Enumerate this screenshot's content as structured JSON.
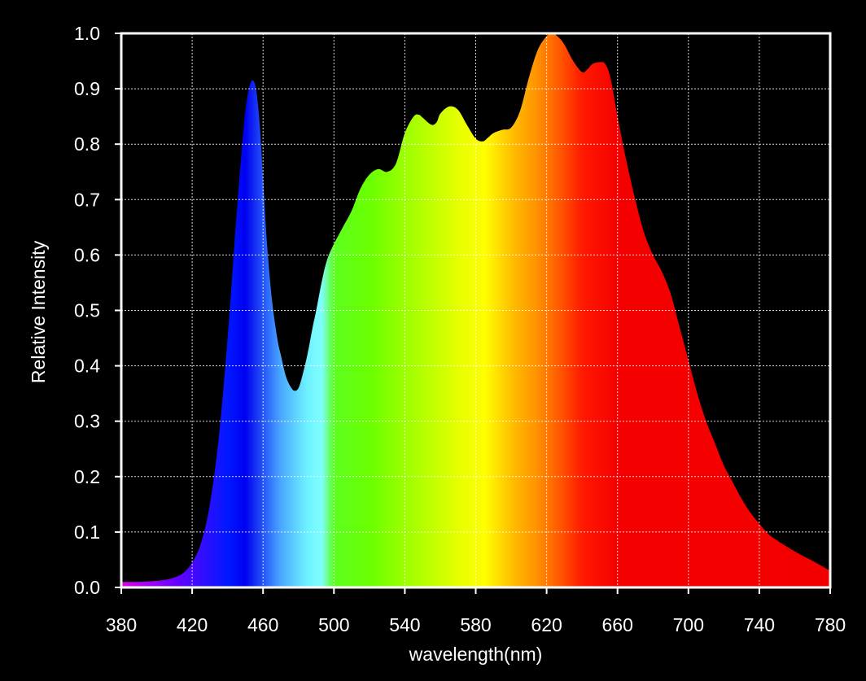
{
  "chart_data": {
    "type": "area",
    "title": "",
    "xlabel": "wavelength(nm)",
    "ylabel": "Relative Intensity",
    "xlim": [
      380,
      780
    ],
    "ylim": [
      0,
      1.0
    ],
    "grid": true,
    "background": "#000000",
    "x_ticks": [
      "380",
      "420",
      "460",
      "500",
      "540",
      "580",
      "620",
      "660",
      "700",
      "740",
      "780"
    ],
    "y_ticks": [
      "0.0",
      "0.1",
      "0.2",
      "0.3",
      "0.4",
      "0.5",
      "0.6",
      "0.7",
      "0.8",
      "0.9",
      "1.0"
    ],
    "series": [
      {
        "x": [
          380,
          390,
          400,
          405,
          410,
          415,
          420,
          425,
          430,
          435,
          440,
          445,
          448,
          450,
          452,
          454,
          456,
          458,
          460,
          462,
          465,
          468,
          470,
          473,
          476,
          478,
          480,
          482,
          485,
          488,
          490,
          493,
          496,
          500,
          505,
          510,
          515,
          520,
          525,
          530,
          535,
          540,
          545,
          548,
          550,
          555,
          558,
          560,
          565,
          570,
          575,
          580,
          584,
          587,
          590,
          595,
          600,
          605,
          610,
          615,
          620,
          623,
          626,
          630,
          635,
          640,
          643,
          646,
          650,
          653,
          656,
          660,
          665,
          670,
          675,
          680,
          685,
          690,
          695,
          700,
          705,
          710,
          715,
          720,
          725,
          730,
          735,
          740,
          745,
          750,
          760,
          770,
          780
        ],
        "values": [
          0.01,
          0.01,
          0.012,
          0.014,
          0.018,
          0.026,
          0.045,
          0.08,
          0.15,
          0.27,
          0.45,
          0.67,
          0.79,
          0.86,
          0.9,
          0.915,
          0.9,
          0.84,
          0.74,
          0.63,
          0.52,
          0.45,
          0.42,
          0.38,
          0.36,
          0.355,
          0.36,
          0.38,
          0.42,
          0.47,
          0.5,
          0.55,
          0.59,
          0.62,
          0.65,
          0.68,
          0.72,
          0.745,
          0.755,
          0.75,
          0.765,
          0.82,
          0.85,
          0.853,
          0.848,
          0.835,
          0.84,
          0.855,
          0.868,
          0.862,
          0.835,
          0.81,
          0.805,
          0.812,
          0.82,
          0.826,
          0.83,
          0.86,
          0.92,
          0.97,
          0.995,
          1.0,
          0.995,
          0.98,
          0.95,
          0.93,
          0.935,
          0.945,
          0.948,
          0.945,
          0.92,
          0.85,
          0.77,
          0.7,
          0.64,
          0.6,
          0.57,
          0.53,
          0.47,
          0.41,
          0.35,
          0.3,
          0.26,
          0.22,
          0.19,
          0.16,
          0.135,
          0.115,
          0.097,
          0.085,
          0.065,
          0.048,
          0.03
        ]
      }
    ],
    "spectrum_colors": [
      {
        "nm": 380,
        "color": "#e000e8"
      },
      {
        "nm": 410,
        "color": "#6a00ff"
      },
      {
        "nm": 440,
        "color": "#0018ff"
      },
      {
        "nm": 450,
        "color": "#0000f0"
      },
      {
        "nm": 470,
        "color": "#4aa8ff"
      },
      {
        "nm": 485,
        "color": "#6ef2ff"
      },
      {
        "nm": 493,
        "color": "#7dffff"
      },
      {
        "nm": 500,
        "color": "#5cff20"
      },
      {
        "nm": 520,
        "color": "#6aff00"
      },
      {
        "nm": 545,
        "color": "#a8ff00"
      },
      {
        "nm": 570,
        "color": "#e6ff00"
      },
      {
        "nm": 585,
        "color": "#ffff00"
      },
      {
        "nm": 600,
        "color": "#ffc000"
      },
      {
        "nm": 615,
        "color": "#ff9000"
      },
      {
        "nm": 628,
        "color": "#ff5500"
      },
      {
        "nm": 640,
        "color": "#ff1a00"
      },
      {
        "nm": 660,
        "color": "#f50000"
      },
      {
        "nm": 780,
        "color": "#f20000"
      }
    ]
  }
}
